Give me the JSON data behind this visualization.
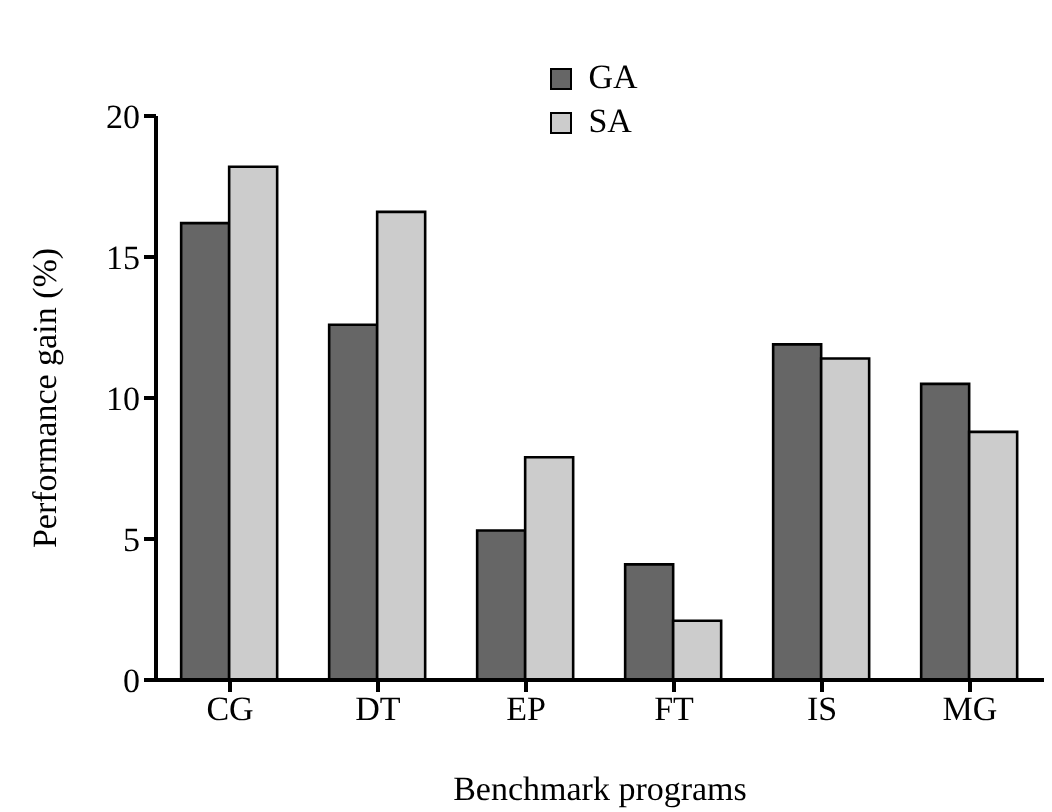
{
  "chart_data": {
    "type": "bar",
    "xlabel": "Benchmark programs",
    "ylabel": "Performance gain (%)",
    "categories": [
      "CG",
      "DT",
      "EP",
      "FT",
      "IS",
      "MG"
    ],
    "series": [
      {
        "name": "GA",
        "color": "#666666",
        "values": [
          16.2,
          12.6,
          5.3,
          4.1,
          11.9,
          10.5
        ]
      },
      {
        "name": "SA",
        "color": "#cccccc",
        "values": [
          18.2,
          16.6,
          7.9,
          2.1,
          11.4,
          8.8
        ]
      }
    ],
    "ylim": [
      0,
      20
    ],
    "yticks": [
      0,
      5,
      10,
      15,
      20
    ],
    "grid": false,
    "legend": "top"
  }
}
